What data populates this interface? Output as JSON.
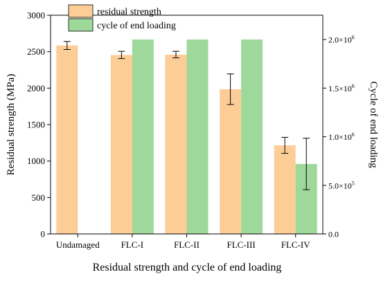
{
  "chart_data": {
    "type": "bar",
    "categories": [
      "Undamaged",
      "FLC-I",
      "FLC-II",
      "FLC-III",
      "FLC-IV"
    ],
    "xlabel": "Residual strength and cycle of end loading",
    "ylabel": "Residual strength (MPa)",
    "y2label": "Cycle of end loading",
    "ylim": [
      0,
      3000
    ],
    "y2lim": [
      0,
      2250000
    ],
    "yticks": [
      "0",
      "500",
      "1000",
      "1500",
      "2000",
      "2500",
      "3000"
    ],
    "y2ticks": [
      {
        "value": 0,
        "base": "0.0",
        "exp": ""
      },
      {
        "value": 500000,
        "base": "5.0×10",
        "exp": "5"
      },
      {
        "value": 1000000,
        "base": "1.0×10",
        "exp": "6"
      },
      {
        "value": 1500000,
        "base": "1.5×10",
        "exp": "6"
      },
      {
        "value": 2000000,
        "base": "2.0×10",
        "exp": "6"
      }
    ],
    "legend_position": "top-left",
    "series": [
      {
        "name": "residual strength",
        "axis": "left",
        "color": "#fdcd98",
        "values": [
          2585,
          2455,
          2460,
          1985,
          1215
        ],
        "errors": [
          55,
          50,
          45,
          210,
          110
        ]
      },
      {
        "name": "cycle of end loading",
        "axis": "right",
        "color": "#9ed89a",
        "values": [
          null,
          2000000,
          2000000,
          2000000,
          720000
        ],
        "errors": [
          null,
          null,
          null,
          null,
          265000
        ]
      }
    ]
  }
}
